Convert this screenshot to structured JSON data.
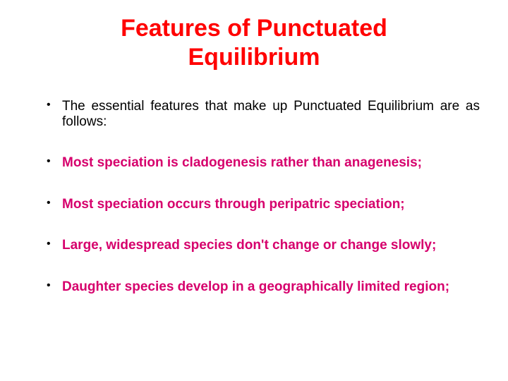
{
  "title": {
    "text": "Features of Punctuated Equilibrium",
    "color": "#ff0000",
    "fontsize": 34
  },
  "bullets": {
    "intro": {
      "text": "The essential features that make up Punctuated Equilibrium are as follows:",
      "color": "#000000",
      "bold": false,
      "fontsize": 19
    },
    "item1": {
      "text": "Most speciation is cladogenesis rather than anagenesis;",
      "color": "#d6006c",
      "bold": true,
      "fontsize": 19
    },
    "item2": {
      "text": "Most speciation occurs through peripatric speciation;",
      "color": "#d6006c",
      "bold": true,
      "fontsize": 19
    },
    "item3": {
      "text": "Large, widespread species don't change or change slowly;",
      "color": "#d6006c",
      "bold": true,
      "fontsize": 19
    },
    "item4": {
      "text": "Daughter species develop in a geographically limited region;",
      "color": "#d6006c",
      "bold": true,
      "fontsize": 19
    }
  }
}
